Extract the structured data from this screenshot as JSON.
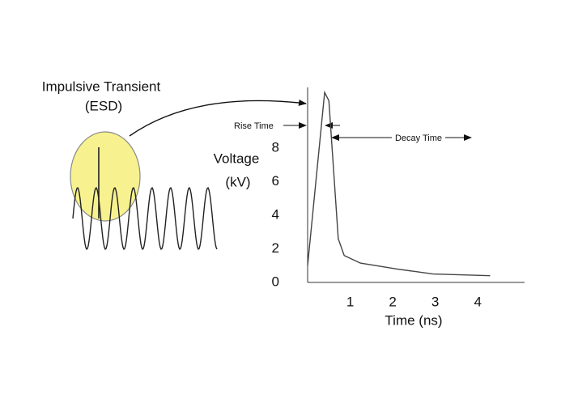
{
  "chart_data": {
    "type": "line",
    "annotations": {
      "transient": "Impulsive Transient",
      "transient_sub": "(ESD)",
      "rise": "Rise Time",
      "decay": "Decay Time"
    },
    "ylabel": [
      "Voltage",
      "(kV)"
    ],
    "xlabel": "Time  (ns)",
    "x": [
      0,
      0.4,
      0.5,
      0.72,
      0.86,
      1.24,
      2.1,
      2.95,
      4.29
    ],
    "values": [
      1,
      11.3,
      10.8,
      2.6,
      1.6,
      1.15,
      0.8,
      0.5,
      0.4
    ],
    "color": "#444444",
    "xlim": [
      0,
      5.1
    ],
    "xticks": [
      1,
      2,
      3,
      4
    ],
    "ylim": [
      0,
      11.6
    ],
    "yticks": [
      0,
      2,
      4,
      6,
      8
    ]
  }
}
